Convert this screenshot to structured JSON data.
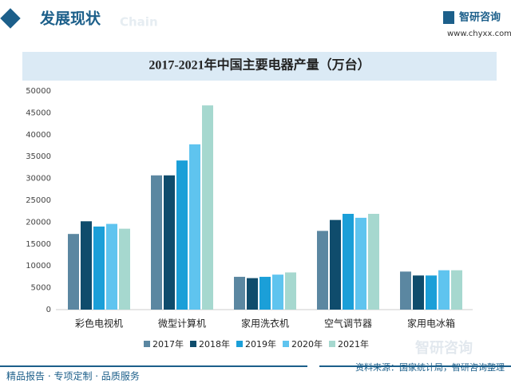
{
  "header": {
    "title": "发展现状",
    "watermark": "Chain"
  },
  "logo": {
    "name": "智研咨询",
    "url": "www.chyxx.com"
  },
  "chart_data": {
    "type": "bar",
    "title": "2017-2021年中国主要电器产量（万台）",
    "categories": [
      "彩色电视机",
      "微型计算机",
      "家用洗衣机",
      "空气调节器",
      "家用电冰箱"
    ],
    "series": [
      {
        "name": "2017年",
        "color": "#5b87a1",
        "values": [
          17300,
          30700,
          7500,
          18000,
          8700
        ]
      },
      {
        "name": "2018年",
        "color": "#0f4c6c",
        "values": [
          20200,
          30700,
          7200,
          20500,
          7800
        ]
      },
      {
        "name": "2019年",
        "color": "#1b9fd8",
        "values": [
          19000,
          34100,
          7500,
          21900,
          7800
        ]
      },
      {
        "name": "2020年",
        "color": "#5fc4ef",
        "values": [
          19600,
          37800,
          8000,
          21000,
          9000
        ]
      },
      {
        "name": "2021年",
        "color": "#a6d8cf",
        "values": [
          18500,
          46700,
          8500,
          21900,
          9000
        ]
      }
    ],
    "ylim": [
      0,
      50000
    ],
    "yticks": [
      0,
      5000,
      10000,
      15000,
      20000,
      25000,
      30000,
      35000,
      40000,
      45000,
      50000
    ],
    "grid": false,
    "legend": "bottom"
  },
  "footer": {
    "slogan": "精品报告 · 专项定制 · 品质服务",
    "source": "资料来源：国家统计局，智研咨询整理",
    "watermark": "智研咨询"
  }
}
